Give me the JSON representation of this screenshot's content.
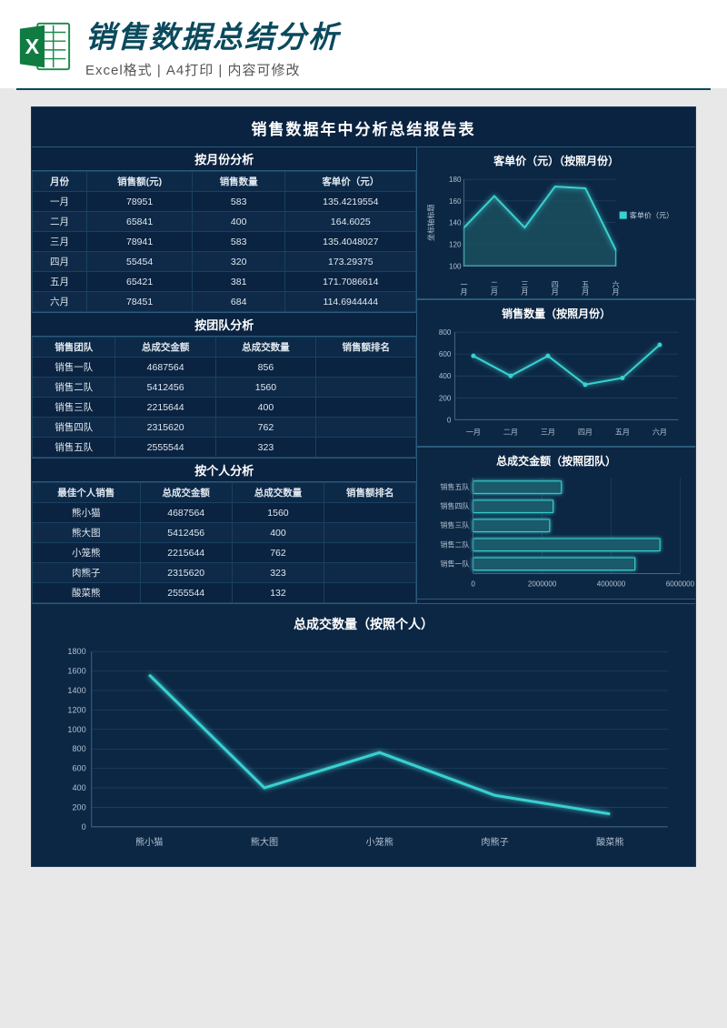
{
  "header": {
    "title": "销售数据总结分析",
    "subtitle": "Excel格式 | A4打印 | 内容可修改",
    "icon_letter": "X"
  },
  "sheet_title": "销售数据年中分析总结报告表",
  "section_month": {
    "title": "按月份分析",
    "columns": [
      "月份",
      "销售额(元)",
      "销售数量",
      "客单价（元）"
    ],
    "rows": [
      [
        "一月",
        "78951",
        "583",
        "135.4219554"
      ],
      [
        "二月",
        "65841",
        "400",
        "164.6025"
      ],
      [
        "三月",
        "78941",
        "583",
        "135.4048027"
      ],
      [
        "四月",
        "55454",
        "320",
        "173.29375"
      ],
      [
        "五月",
        "65421",
        "381",
        "171.7086614"
      ],
      [
        "六月",
        "78451",
        "684",
        "114.6944444"
      ]
    ]
  },
  "section_team": {
    "title": "按团队分析",
    "columns": [
      "销售团队",
      "总成交金额",
      "总成交数量",
      "销售额排名"
    ],
    "rows": [
      [
        "销售一队",
        "4687564",
        "856",
        ""
      ],
      [
        "销售二队",
        "5412456",
        "1560",
        ""
      ],
      [
        "销售三队",
        "2215644",
        "400",
        ""
      ],
      [
        "销售四队",
        "2315620",
        "762",
        ""
      ],
      [
        "销售五队",
        "2555544",
        "323",
        ""
      ]
    ]
  },
  "section_person": {
    "title": "按个人分析",
    "columns": [
      "最佳个人销售",
      "总成交金额",
      "总成交数量",
      "销售额排名"
    ],
    "rows": [
      [
        "熊小猫",
        "4687564",
        "1560",
        ""
      ],
      [
        "熊大图",
        "5412456",
        "400",
        ""
      ],
      [
        "小笼熊",
        "2215644",
        "762",
        ""
      ],
      [
        "肉熊子",
        "2315620",
        "323",
        ""
      ],
      [
        "酸菜熊",
        "2555544",
        "132",
        ""
      ]
    ]
  },
  "chart_unit_price": {
    "title": "客单价（元）（按照月份）",
    "type": "area",
    "categories": [
      "一月",
      "二月",
      "三月",
      "四月",
      "五月",
      "六月"
    ],
    "values": [
      135.4,
      164.6,
      135.4,
      173.3,
      171.7,
      114.7
    ],
    "ylim": [
      100,
      180
    ],
    "yticks": [
      100,
      120,
      140,
      160,
      180
    ],
    "legend": "客单价（元）",
    "ylabel": "坐标轴标题",
    "line_color": "#3ad0d0",
    "fill_color": "#1a5060",
    "bg_color": "#0c2744"
  },
  "chart_sales_qty": {
    "title": "销售数量（按照月份）",
    "type": "line",
    "categories": [
      "一月",
      "二月",
      "三月",
      "四月",
      "五月",
      "六月"
    ],
    "values": [
      583,
      400,
      583,
      320,
      381,
      684
    ],
    "ylim": [
      0,
      800
    ],
    "yticks": [
      0,
      200,
      400,
      600,
      800
    ],
    "line_color": "#3ad0d0",
    "bg_color": "#0c2744"
  },
  "chart_team_amount": {
    "title": "总成交金额（按照团队）",
    "type": "hbar",
    "categories": [
      "销售五队",
      "销售四队",
      "销售三队",
      "销售二队",
      "销售一队"
    ],
    "values": [
      2555544,
      2315620,
      2215644,
      5412456,
      4687564
    ],
    "xlim": [
      0,
      6000000
    ],
    "xticks": [
      0,
      2000000,
      4000000,
      6000000
    ],
    "bar_color": "#1a5a6a",
    "bar_stroke": "#3ad0d0",
    "bg_color": "#0c2744"
  },
  "chart_person_qty": {
    "title": "总成交数量（按照个人）",
    "type": "line",
    "categories": [
      "熊小猫",
      "熊大图",
      "小笼熊",
      "肉熊子",
      "酸菜熊"
    ],
    "values": [
      1560,
      400,
      762,
      323,
      132
    ],
    "ylim": [
      0,
      1800
    ],
    "yticks": [
      0,
      200,
      400,
      600,
      800,
      1000,
      1200,
      1400,
      1600,
      1800
    ],
    "line_color": "#3ad0d0",
    "bg_color": "#0c2744"
  },
  "colors": {
    "sheet_bg": "#0a2340",
    "border": "#1a4060",
    "accent": "#3ad0d0",
    "text": "#e0e8f0"
  }
}
